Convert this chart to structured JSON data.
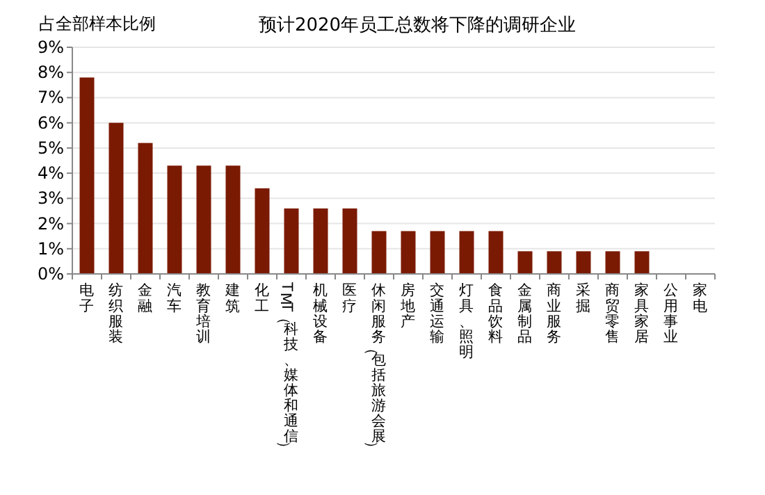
{
  "chart_data": {
    "type": "bar",
    "title": "预计2020年员工总数将下降的调研企业",
    "ylabel": "占全部样本比例",
    "categories": [
      "电子",
      "纺织服装",
      "金融",
      "汽车",
      "教育培训",
      "建筑",
      "化工",
      "TMT（科技、媒体和通信）",
      "机械设备",
      "医疗",
      "休闲服务（包括旅游会展）",
      "房地产",
      "交通运输",
      "灯具、照明",
      "食品饮料",
      "金属制品",
      "商业服务",
      "采掘",
      "商贸零售",
      "家具家居",
      "公用事业",
      "家电"
    ],
    "values": [
      7.8,
      6.0,
      5.2,
      4.3,
      4.3,
      4.3,
      3.4,
      2.6,
      2.6,
      2.6,
      1.7,
      1.7,
      1.7,
      1.7,
      1.7,
      0.9,
      0.9,
      0.9,
      0.9,
      0.9,
      0,
      0
    ],
    "color": "#7b1a02",
    "ylim": [
      0,
      9
    ],
    "yticks": [
      {
        "value": 0,
        "label": "0%"
      },
      {
        "value": 1,
        "label": "1%"
      },
      {
        "value": 2,
        "label": "2%"
      },
      {
        "value": 3,
        "label": "3%"
      },
      {
        "value": 4,
        "label": "4%"
      },
      {
        "value": 5,
        "label": "5%"
      },
      {
        "value": 6,
        "label": "6%"
      },
      {
        "value": 7,
        "label": "7%"
      },
      {
        "value": 8,
        "label": "8%"
      },
      {
        "value": 9,
        "label": "9%"
      }
    ],
    "grid": "y"
  }
}
